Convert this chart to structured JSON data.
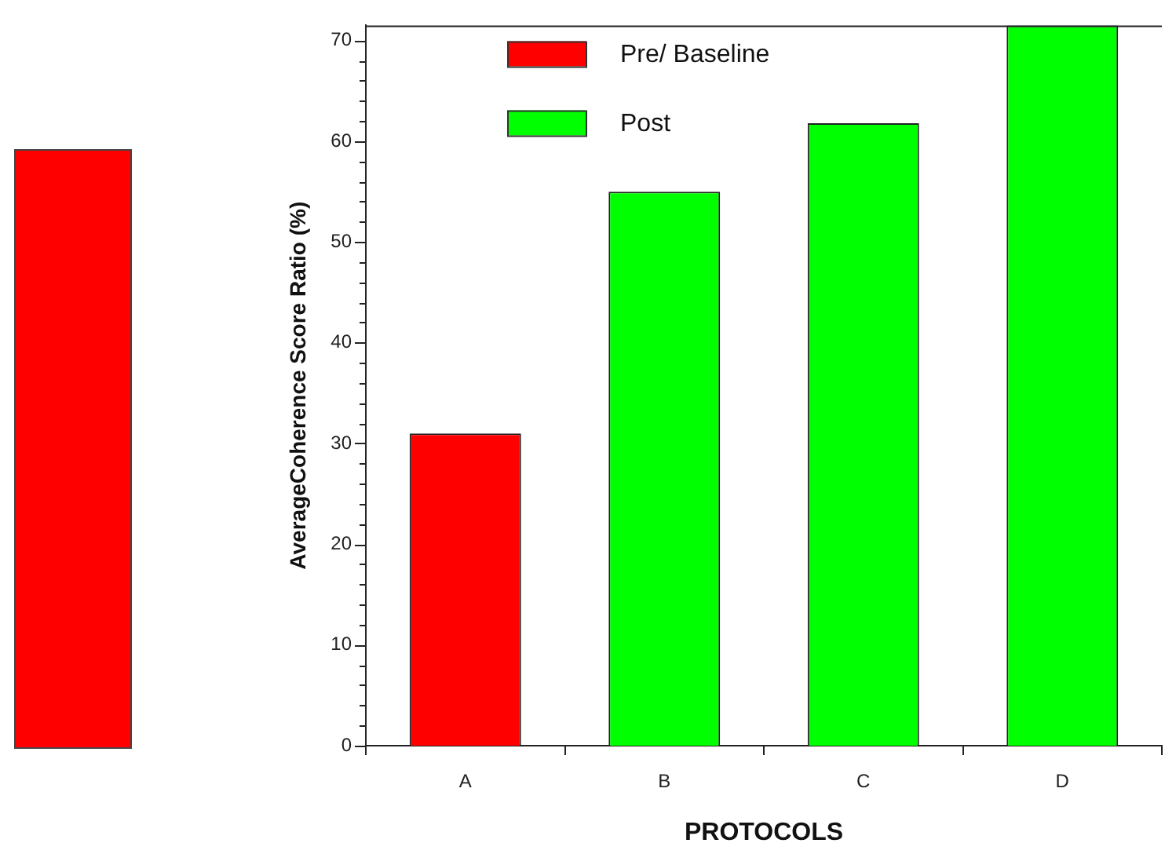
{
  "chart_data": {
    "type": "bar",
    "xlabel": "PROTOCOLS",
    "ylabel": "AverageCoherence Score Ratio (%)",
    "categories": [
      "A",
      "B",
      "C",
      "D"
    ],
    "series": [
      {
        "name": "Pre/ Baseline",
        "color": "#ff0000",
        "values": [
          31,
          null,
          null,
          null
        ]
      },
      {
        "name": "Post",
        "color": "#00ff00",
        "values": [
          null,
          55,
          61.8,
          71.5
        ]
      }
    ],
    "ylim": [
      0,
      71.5
    ],
    "yticks": [
      0,
      {
        "value": 2,
        "label": null
      },
      {
        "value": 4,
        "label": null
      },
      {
        "value": 6,
        "label": null
      },
      {
        "value": 8,
        "label": null
      },
      10,
      {
        "value": 12,
        "label": null
      },
      {
        "value": 14,
        "label": null
      },
      {
        "value": 16,
        "label": null
      },
      {
        "value": 18,
        "label": null
      },
      20,
      {
        "value": 22,
        "label": null
      },
      {
        "value": 24,
        "label": null
      },
      {
        "value": 26,
        "label": null
      },
      {
        "value": 28,
        "label": null
      },
      30,
      {
        "value": 32,
        "label": null
      },
      {
        "value": 34,
        "label": null
      },
      {
        "value": 36,
        "label": null
      },
      {
        "value": 38,
        "label": null
      },
      40,
      {
        "value": 42,
        "label": null
      },
      {
        "value": 44,
        "label": null
      },
      {
        "value": 46,
        "label": null
      },
      {
        "value": 48,
        "label": null
      },
      50,
      {
        "value": 52,
        "label": null
      },
      {
        "value": 54,
        "label": null
      },
      {
        "value": 56,
        "label": null
      },
      {
        "value": 58,
        "label": null
      },
      60,
      {
        "value": 62,
        "label": null
      },
      {
        "value": 64,
        "label": null
      },
      {
        "value": 66,
        "label": null
      },
      {
        "value": 68,
        "label": null
      },
      70
    ],
    "grid": false,
    "legend": "top left"
  }
}
